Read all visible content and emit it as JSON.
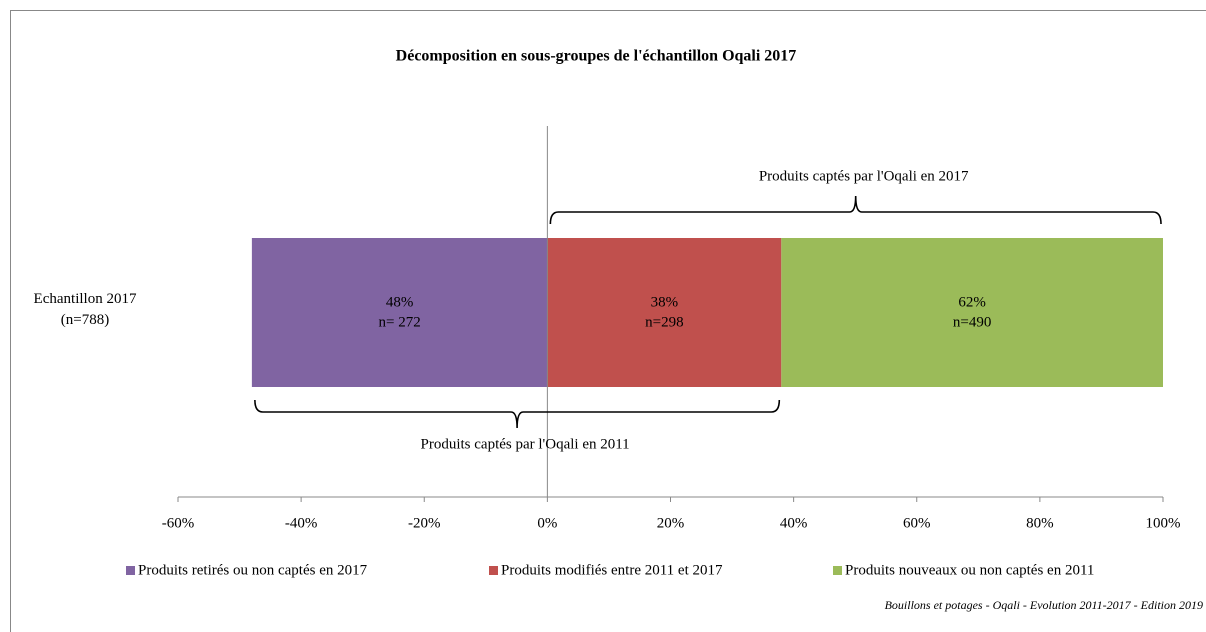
{
  "chart_data": {
    "type": "diverging_stacked_bar",
    "title": "Décomposition en sous-groupes de l'échantillon Oqali 2017",
    "categories": [
      "Echantillon 2017\n(n=788)"
    ],
    "series": [
      {
        "name": "Produits retirés ou non captés en 2017",
        "color": "#8064a2",
        "values": [
          -48
        ],
        "value_labels": [
          "48%"
        ],
        "count_labels": [
          "n= 272"
        ]
      },
      {
        "name": "Produits modifiés entre 2011 et 2017",
        "color": "#c0504d",
        "values": [
          38
        ],
        "value_labels": [
          "38%"
        ],
        "count_labels": [
          "n=298"
        ]
      },
      {
        "name": "Produits nouveaux ou non captés en 2011",
        "color": "#9bbb59",
        "values": [
          62
        ],
        "value_labels": [
          "62%"
        ],
        "count_labels": [
          "n=490"
        ]
      }
    ],
    "xlim": [
      -60,
      100
    ],
    "xticks": [
      {
        "value": -60,
        "label": "-60%"
      },
      {
        "value": -40,
        "label": "-40%"
      },
      {
        "value": -20,
        "label": "-20%"
      },
      {
        "value": 0,
        "label": "0%"
      },
      {
        "value": 20,
        "label": "20%"
      },
      {
        "value": 40,
        "label": "40%"
      },
      {
        "value": 60,
        "label": "60%"
      },
      {
        "value": 80,
        "label": "80%"
      },
      {
        "value": 100,
        "label": "100%"
      }
    ],
    "annotations": [
      {
        "text": "Produits captés par l'Oqali en 2017",
        "span": [
          0,
          100
        ],
        "position": "above"
      },
      {
        "text": "Produits captés par l'Oqali en 2011",
        "span": [
          -48,
          38
        ],
        "position": "below"
      }
    ],
    "legend": "bottom",
    "source": "Bouillons et potages - Oqali - Evolution 2011-2017 - Edition 2019"
  }
}
